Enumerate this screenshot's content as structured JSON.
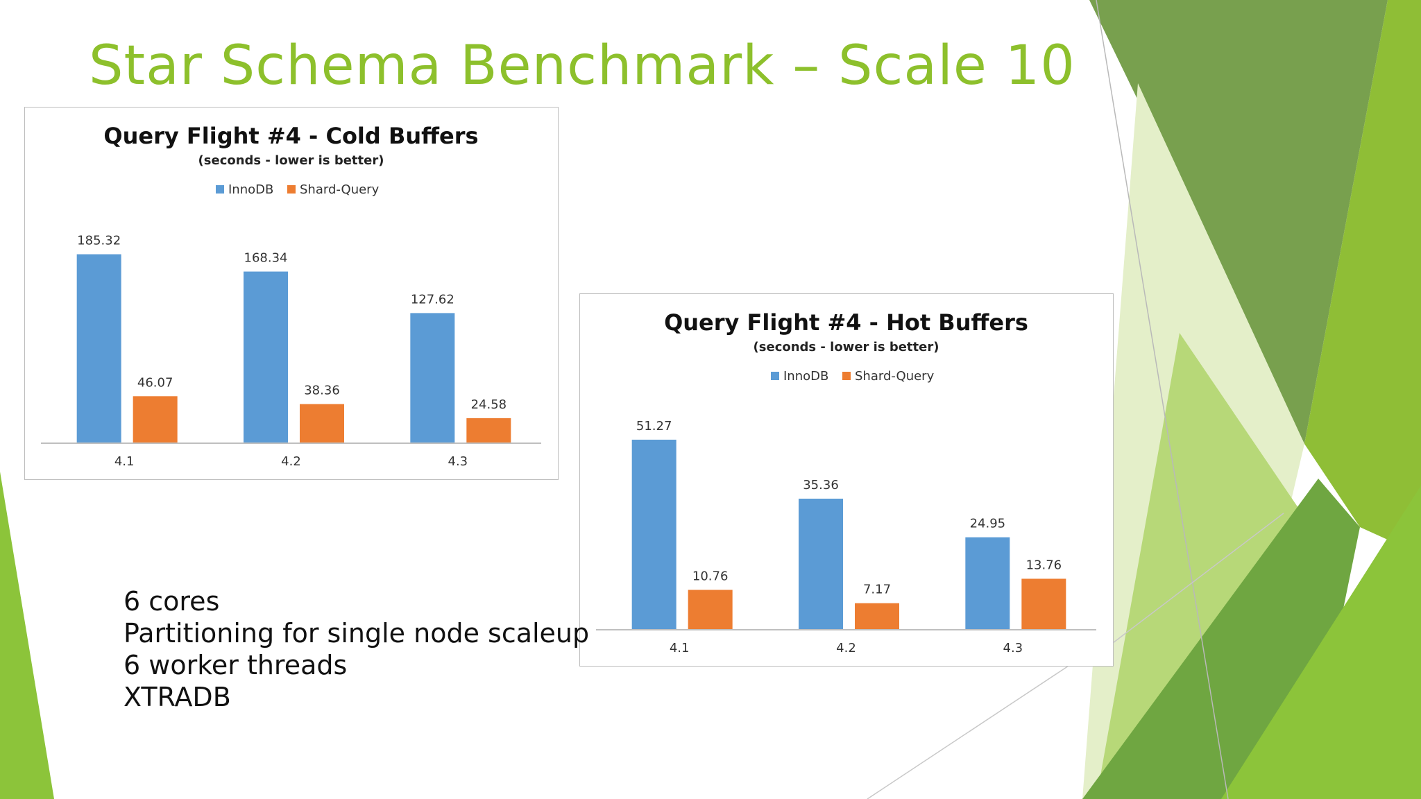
{
  "slide": {
    "title": "Star Schema Benchmark – Scale 10",
    "notes": [
      "6 cores",
      "Partitioning for single node scaleup",
      "6 worker threads",
      "XTRADB"
    ],
    "colors": {
      "title": "#8dc02c",
      "innodb": "#5b9bd5",
      "shard_query": "#ed7d31",
      "decor_light": "#a6cf4a",
      "decor_dark": "#6a9a3a"
    }
  },
  "chart_data": [
    {
      "type": "bar",
      "title": "Query Flight #4 - Cold Buffers",
      "subtitle": "(seconds - lower is better)",
      "categories": [
        "4.1",
        "4.2",
        "4.3"
      ],
      "series": [
        {
          "name": "InnoDB",
          "values": [
            185.32,
            168.34,
            127.62
          ],
          "labels": [
            "185.32",
            "168.34",
            "127.62"
          ],
          "color": "#5b9bd5"
        },
        {
          "name": "Shard-Query",
          "values": [
            46.07,
            38.36,
            24.58
          ],
          "labels": [
            "46.07",
            "38.36",
            "24.58"
          ],
          "color": "#ed7d31"
        }
      ],
      "ylim": [
        0,
        200
      ],
      "legend": "top-center",
      "grid": false
    },
    {
      "type": "bar",
      "title": "Query Flight #4 - Hot Buffers",
      "subtitle": "(seconds - lower is better)",
      "categories": [
        "4.1",
        "4.2",
        "4.3"
      ],
      "series": [
        {
          "name": "InnoDB",
          "values": [
            51.27,
            35.36,
            24.95
          ],
          "labels": [
            "51.27",
            "35.36",
            "24.95"
          ],
          "color": "#5b9bd5"
        },
        {
          "name": "Shard-Query",
          "values": [
            10.76,
            7.17,
            13.76
          ],
          "labels": [
            "10.76",
            "7.17",
            "13.76"
          ],
          "color": "#ed7d31"
        }
      ],
      "ylim": [
        0,
        55
      ],
      "legend": "top-center",
      "grid": false
    }
  ]
}
